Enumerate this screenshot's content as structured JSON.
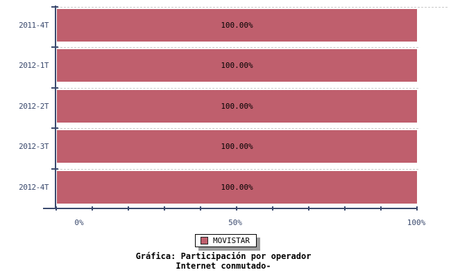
{
  "chart_data": {
    "type": "bar",
    "orientation": "horizontal",
    "title": "Gráfica: Participación por operador",
    "subtitle": "Internet conmutado-",
    "categories": [
      "2011-4T",
      "2012-1T",
      "2012-2T",
      "2012-3T",
      "2012-4T"
    ],
    "series": [
      {
        "name": "MOVISTAR",
        "color": "#bf5f6d",
        "values": [
          100.0,
          100.0,
          100.0,
          100.0,
          100.0
        ]
      }
    ],
    "value_labels": [
      "100.00%",
      "100.00%",
      "100.00%",
      "100.00%",
      "100.00%"
    ],
    "xlim": [
      0,
      100
    ],
    "x_tick_step": 10,
    "x_axis_labels": [
      "0%",
      "50%",
      "100%"
    ],
    "legend": {
      "position": "bottom",
      "entries": [
        {
          "label": "MOVISTAR",
          "color": "#bf5f6d"
        }
      ]
    },
    "grid": {
      "style": "dashed",
      "axis": "vertical-category-separators",
      "color": "#c8c8c8"
    },
    "colors": {
      "bar": "#bf5f6d",
      "axis": "#3a496d",
      "grid": "#c8c8c8",
      "label_text": "#000000",
      "caption_text": "#000000",
      "legend_shadow": "#9c9c9c",
      "background": "#ffffff"
    }
  }
}
